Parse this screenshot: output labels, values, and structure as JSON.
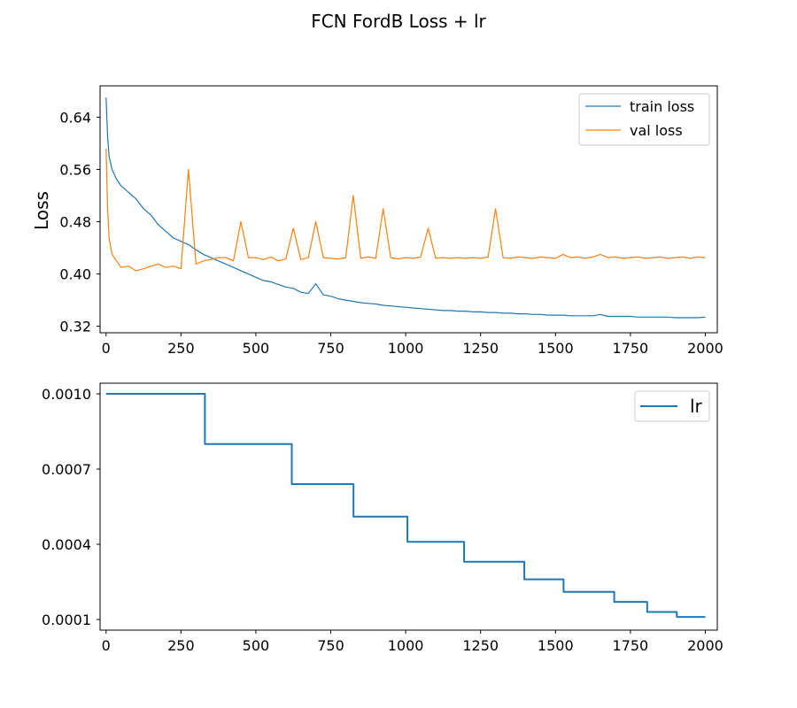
{
  "figure": {
    "title": "FCN FordB Loss + lr"
  },
  "chart_data": [
    {
      "type": "line",
      "title": "",
      "xlabel": "",
      "ylabel": "Loss",
      "xlim": [
        -20,
        2040
      ],
      "ylim": [
        0.31,
        0.688
      ],
      "xticks": [
        0,
        250,
        500,
        750,
        1000,
        1250,
        1500,
        1750,
        2000
      ],
      "yticks": [
        0.32,
        0.4,
        0.48,
        0.56,
        0.64
      ],
      "ytick_labels": [
        "0.32",
        "0.40",
        "0.48",
        "0.56",
        "0.64"
      ],
      "grid": false,
      "legend": "top-right",
      "series": [
        {
          "name": "train loss",
          "color": "#1f77b4",
          "x": [
            0,
            5,
            10,
            20,
            35,
            50,
            75,
            100,
            125,
            150,
            175,
            200,
            225,
            250,
            275,
            300,
            325,
            350,
            375,
            400,
            425,
            450,
            475,
            500,
            525,
            550,
            575,
            600,
            625,
            650,
            675,
            700,
            725,
            750,
            775,
            800,
            825,
            850,
            875,
            900,
            925,
            950,
            975,
            1000,
            1025,
            1050,
            1075,
            1100,
            1125,
            1150,
            1175,
            1200,
            1225,
            1250,
            1275,
            1300,
            1325,
            1350,
            1375,
            1400,
            1425,
            1450,
            1475,
            1500,
            1525,
            1550,
            1575,
            1600,
            1625,
            1650,
            1675,
            1700,
            1725,
            1750,
            1775,
            1800,
            1825,
            1850,
            1875,
            1900,
            1925,
            1950,
            1975,
            2000
          ],
          "values": [
            0.67,
            0.61,
            0.58,
            0.56,
            0.545,
            0.535,
            0.525,
            0.515,
            0.5,
            0.49,
            0.475,
            0.465,
            0.455,
            0.45,
            0.445,
            0.437,
            0.43,
            0.425,
            0.42,
            0.415,
            0.41,
            0.405,
            0.4,
            0.395,
            0.39,
            0.388,
            0.384,
            0.38,
            0.378,
            0.372,
            0.37,
            0.385,
            0.368,
            0.366,
            0.362,
            0.36,
            0.358,
            0.356,
            0.355,
            0.354,
            0.352,
            0.351,
            0.35,
            0.349,
            0.348,
            0.347,
            0.346,
            0.345,
            0.344,
            0.344,
            0.343,
            0.343,
            0.342,
            0.342,
            0.341,
            0.341,
            0.34,
            0.34,
            0.339,
            0.339,
            0.338,
            0.338,
            0.337,
            0.337,
            0.337,
            0.336,
            0.336,
            0.336,
            0.336,
            0.338,
            0.335,
            0.335,
            0.335,
            0.335,
            0.334,
            0.334,
            0.334,
            0.334,
            0.334,
            0.333,
            0.333,
            0.333,
            0.333,
            0.334
          ]
        },
        {
          "name": "val loss",
          "color": "#ff7f0e",
          "x": [
            0,
            5,
            10,
            20,
            35,
            50,
            75,
            100,
            125,
            150,
            175,
            200,
            225,
            250,
            275,
            300,
            325,
            350,
            375,
            400,
            425,
            450,
            475,
            500,
            525,
            550,
            575,
            600,
            625,
            650,
            675,
            700,
            725,
            750,
            775,
            800,
            825,
            850,
            875,
            900,
            925,
            950,
            975,
            1000,
            1025,
            1050,
            1075,
            1100,
            1125,
            1150,
            1175,
            1200,
            1225,
            1250,
            1275,
            1300,
            1325,
            1350,
            1375,
            1400,
            1425,
            1450,
            1475,
            1500,
            1525,
            1550,
            1575,
            1600,
            1625,
            1650,
            1675,
            1700,
            1725,
            1750,
            1775,
            1800,
            1825,
            1850,
            1875,
            1900,
            1925,
            1950,
            1975,
            2000
          ],
          "values": [
            0.592,
            0.5,
            0.455,
            0.43,
            0.42,
            0.41,
            0.412,
            0.405,
            0.408,
            0.412,
            0.415,
            0.41,
            0.412,
            0.408,
            0.56,
            0.415,
            0.42,
            0.422,
            0.425,
            0.425,
            0.42,
            0.48,
            0.425,
            0.425,
            0.422,
            0.426,
            0.42,
            0.423,
            0.47,
            0.422,
            0.425,
            0.48,
            0.425,
            0.424,
            0.423,
            0.425,
            0.52,
            0.424,
            0.426,
            0.424,
            0.5,
            0.425,
            0.423,
            0.425,
            0.424,
            0.426,
            0.47,
            0.424,
            0.425,
            0.424,
            0.425,
            0.424,
            0.425,
            0.424,
            0.426,
            0.5,
            0.425,
            0.424,
            0.426,
            0.425,
            0.424,
            0.426,
            0.425,
            0.424,
            0.43,
            0.425,
            0.426,
            0.424,
            0.426,
            0.43,
            0.425,
            0.426,
            0.424,
            0.425,
            0.426,
            0.424,
            0.425,
            0.426,
            0.424,
            0.425,
            0.426,
            0.424,
            0.426,
            0.425
          ]
        }
      ]
    },
    {
      "type": "line",
      "title": "",
      "xlabel": "",
      "ylabel": "",
      "xlim": [
        -20,
        2040
      ],
      "ylim": [
        5.75e-05,
        0.0010425
      ],
      "xticks": [
        0,
        250,
        500,
        750,
        1000,
        1250,
        1500,
        1750,
        2000
      ],
      "yticks": [
        0.0001,
        0.0004,
        0.0007,
        0.001
      ],
      "ytick_labels": [
        "0.0001",
        "0.0004",
        "0.0007",
        "0.0010"
      ],
      "grid": false,
      "legend": "top-right",
      "series": [
        {
          "name": "lr",
          "color": "#1f77b4",
          "step": "post",
          "x": [
            0,
            330,
            620,
            826,
            1006,
            1195,
            1396,
            1527,
            1696,
            1806,
            1905,
            2000
          ],
          "values": [
            0.001,
            0.0008,
            0.00064,
            0.00051,
            0.00041,
            0.00033,
            0.00026,
            0.00021,
            0.00017,
            0.00013,
            0.00011,
            0.00011
          ]
        }
      ]
    }
  ]
}
